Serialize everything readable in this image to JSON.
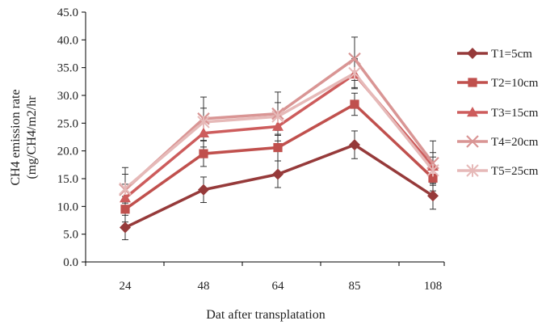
{
  "chart_data": {
    "type": "line",
    "title": "",
    "xlabel": "Dat after transplatation",
    "ylabel_line1": "CH4 emission rate",
    "ylabel_line2": "(mg/CH4/m2/hr",
    "categories": [
      "24",
      "48",
      "64",
      "85",
      "108"
    ],
    "ylim": [
      0,
      45
    ],
    "yticks": [
      "0.0",
      "5.0",
      "10.0",
      "15.0",
      "20.0",
      "25.0",
      "30.0",
      "35.0",
      "40.0",
      "45.0"
    ],
    "grid": false,
    "legend_position": "right",
    "series": [
      {
        "name": "T1=5cm",
        "marker": "diamond",
        "color": "#963a3a",
        "values": [
          6.2,
          13.0,
          15.8,
          21.1,
          11.9
        ],
        "errors": [
          2.2,
          2.3,
          2.4,
          2.5,
          2.4
        ]
      },
      {
        "name": "T2=10cm",
        "marker": "square",
        "color": "#c0504d",
        "values": [
          9.5,
          19.5,
          20.6,
          28.4,
          15.1
        ],
        "errors": [
          2.3,
          2.3,
          2.4,
          2.0,
          2.3
        ]
      },
      {
        "name": "T3=15cm",
        "marker": "triangle",
        "color": "#cd5c5c",
        "values": [
          11.5,
          23.2,
          24.4,
          33.8,
          17.2
        ],
        "errors": [
          2.5,
          2.5,
          2.6,
          2.6,
          2.5
        ]
      },
      {
        "name": "T4=20cm",
        "marker": "x",
        "color": "#d99594",
        "values": [
          13.0,
          25.8,
          26.7,
          36.6,
          17.8
        ],
        "errors": [
          4.0,
          3.9,
          3.9,
          3.9,
          4.0
        ]
      },
      {
        "name": "T5=25cm",
        "marker": "star",
        "color": "#e6b9b8",
        "values": [
          13.2,
          25.2,
          26.2,
          34.0,
          16.5
        ],
        "errors": [
          2.6,
          2.5,
          2.5,
          2.6,
          2.4
        ]
      }
    ]
  }
}
